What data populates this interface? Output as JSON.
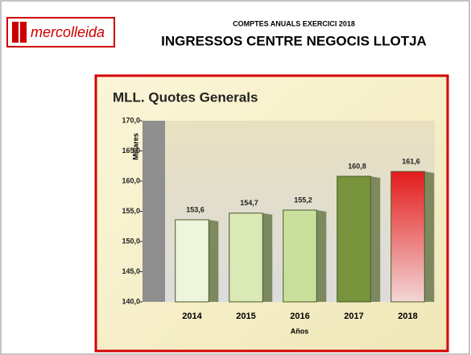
{
  "header": {
    "logo": "mercolleida",
    "subtitle": "COMPTES ANUALS EXERCICI 2018",
    "title": "INGRESSOS CENTRE NEGOCIS LLOTJA"
  },
  "chart_data": {
    "type": "bar",
    "title": "MLL. Quotes Generals",
    "y_label": "Millares",
    "x_label": "Años",
    "categories": [
      "2014",
      "2015",
      "2016",
      "2017",
      "2018"
    ],
    "values": [
      153.6,
      154.7,
      155.2,
      160.8,
      161.6
    ],
    "value_labels": [
      "153,6",
      "154,7",
      "155,2",
      "160,8",
      "161,6"
    ],
    "colors": [
      "#eef5dc",
      "#dbe9b6",
      "#c9df9c",
      "#77933c",
      "#e31b1b"
    ],
    "ylim": [
      140,
      170
    ],
    "yticks": [
      {
        "value": 140,
        "label": "140,0"
      },
      {
        "value": 145,
        "label": "145,0"
      },
      {
        "value": 150,
        "label": "150,0"
      },
      {
        "value": 155,
        "label": "155,0"
      },
      {
        "value": 160,
        "label": "160,0"
      },
      {
        "value": 165,
        "label": "165,0"
      },
      {
        "value": 170,
        "label": "170,0"
      }
    ]
  }
}
